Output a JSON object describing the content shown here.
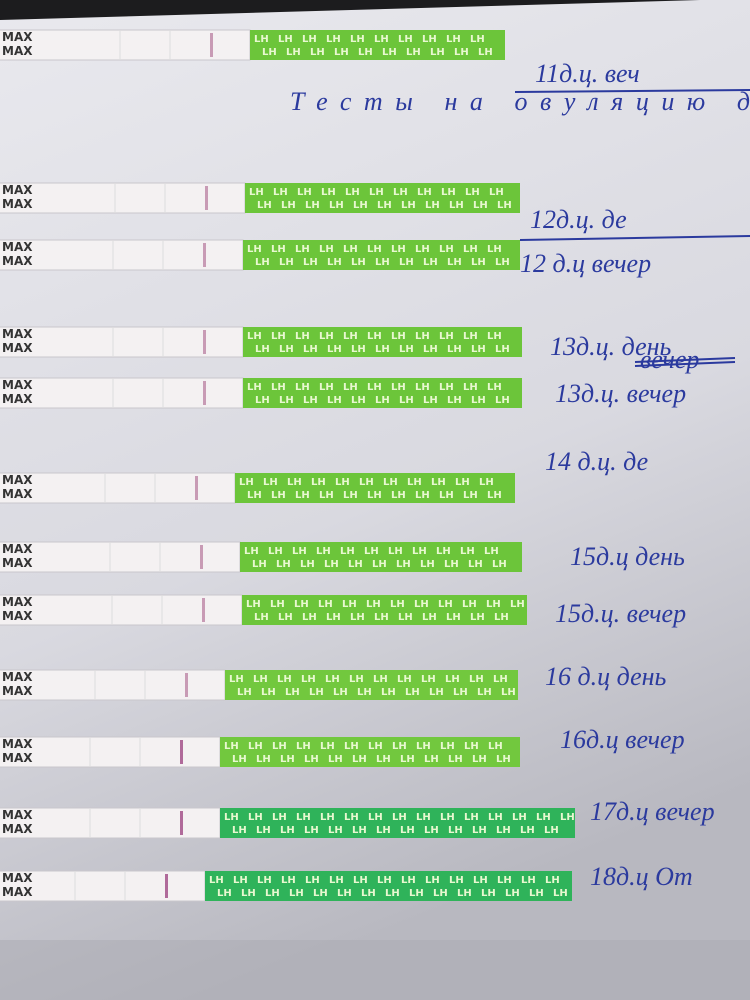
{
  "strip": {
    "label": "MAX",
    "brand": "LH"
  },
  "heading": "Тесты на овуляцию д",
  "notes": [
    "11д.ц. веч",
    "12д.ц. де",
    "12 д.ц вечер",
    "13д.ц. день",
    "13д.ц. вечер",
    "14 д.ц. де",
    "15д.ц день",
    "15д.ц. вечер",
    "16 д.ц день",
    "16д.ц вечер",
    "17д.ц вечер",
    "18д.ц От"
  ],
  "crossed_out": "вечер"
}
